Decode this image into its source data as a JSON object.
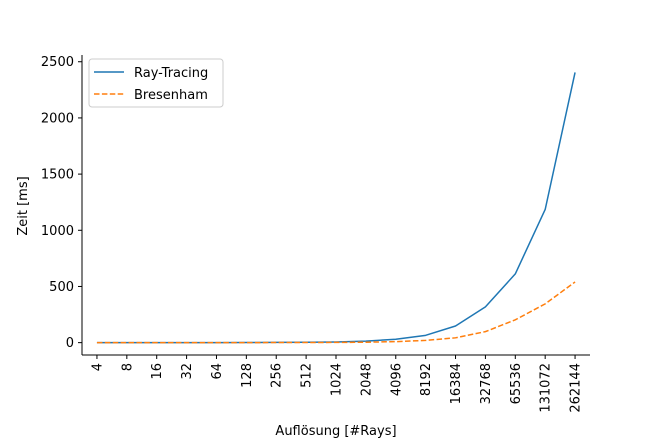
{
  "chart_data": {
    "type": "line",
    "title": "",
    "xlabel": "Auflösung [#Rays]",
    "ylabel": "Zeit [ms]",
    "categories": [
      "4",
      "8",
      "16",
      "32",
      "64",
      "128",
      "256",
      "512",
      "1024",
      "2048",
      "4096",
      "8192",
      "16384",
      "32768",
      "65536",
      "131072",
      "262144"
    ],
    "ylim": [
      -110,
      2560
    ],
    "yticks": [
      0,
      500,
      1000,
      1500,
      2000,
      2500
    ],
    "grid": false,
    "legend_position": "top-left",
    "series": [
      {
        "name": "Ray-Tracing",
        "color": "#1f77b4",
        "dash": "solid",
        "values": [
          0,
          0,
          0,
          0,
          0,
          1,
          2,
          3,
          6,
          14,
          30,
          65,
          148,
          318,
          612,
          1185,
          2405
        ]
      },
      {
        "name": "Bresenham",
        "color": "#ff7f0e",
        "dash": "dashed",
        "values": [
          0,
          0,
          0,
          0,
          0,
          0,
          1,
          1,
          2,
          4,
          9,
          20,
          43,
          98,
          203,
          345,
          540
        ]
      }
    ]
  }
}
